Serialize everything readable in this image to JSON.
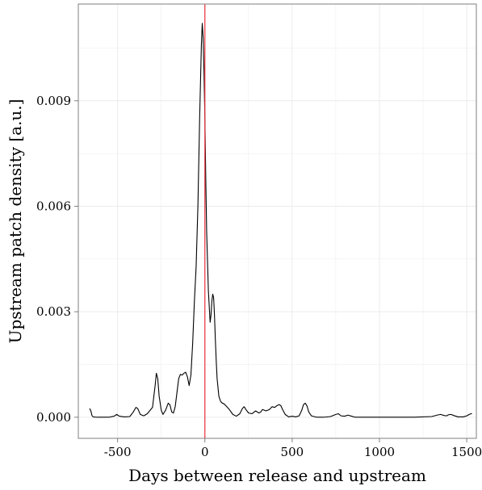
{
  "chart_data": {
    "type": "line",
    "title": "",
    "xlabel": "Days between release and upstream",
    "ylabel": "Upstream patch density [a.u.]",
    "xlim": [
      -725,
      1555
    ],
    "ylim": [
      -0.0006,
      0.01175
    ],
    "x_ticks": [
      -500,
      0,
      500,
      1000,
      1500
    ],
    "x_tick_labels": [
      "-500",
      "0",
      "500",
      "1000",
      "1500"
    ],
    "y_ticks": [
      0.0,
      0.003,
      0.006,
      0.009
    ],
    "y_tick_labels": [
      "0.000",
      "0.003",
      "0.006",
      "0.009"
    ],
    "grid": true,
    "vline": {
      "x": 0,
      "color": "#e8323c"
    },
    "colors": {
      "series": "#000000",
      "grid": "#ebebeb",
      "frame": "#7f7f7f"
    },
    "series": [
      {
        "x": [
          -660,
          -653,
          -647,
          -640,
          -620,
          -600,
          -550,
          -520,
          -505,
          -490,
          -460,
          -430,
          -410,
          -395,
          -385,
          -370,
          -350,
          -330,
          -300,
          -285,
          -278,
          -270,
          -262,
          -250,
          -240,
          -225,
          -210,
          -200,
          -190,
          -180,
          -170,
          -160,
          -150,
          -140,
          -130,
          -120,
          -110,
          -100,
          -90,
          -80,
          -70,
          -60,
          -50,
          -40,
          -30,
          -20,
          -15,
          -10,
          -5,
          0,
          5,
          10,
          20,
          30,
          35,
          40,
          45,
          50,
          55,
          60,
          65,
          70,
          80,
          90,
          100,
          110,
          120,
          140,
          160,
          180,
          200,
          215,
          225,
          235,
          250,
          270,
          290,
          310,
          320,
          330,
          350,
          370,
          385,
          400,
          410,
          425,
          435,
          445,
          460,
          480,
          500,
          520,
          540,
          555,
          565,
          575,
          585,
          595,
          610,
          640,
          680,
          720,
          750,
          765,
          780,
          800,
          820,
          840,
          860,
          900,
          1000,
          1100,
          1200,
          1300,
          1330,
          1350,
          1370,
          1385,
          1395,
          1410,
          1425,
          1450,
          1480,
          1500,
          1515,
          1525,
          1530
        ],
        "y": [
          0.00025,
          0.00018,
          5e-05,
          1e-05,
          0.0,
          0.0,
          0.0,
          3e-05,
          8e-05,
          3e-05,
          1e-05,
          2e-05,
          0.00015,
          0.00028,
          0.00025,
          8e-05,
          4e-05,
          0.0001,
          0.00028,
          0.0009,
          0.00125,
          0.0011,
          0.0006,
          0.0002,
          8e-05,
          0.0002,
          0.0004,
          0.00035,
          0.00015,
          0.00012,
          0.0003,
          0.0007,
          0.0011,
          0.00122,
          0.0012,
          0.00125,
          0.00128,
          0.00115,
          0.0009,
          0.0012,
          0.0021,
          0.0033,
          0.0043,
          0.006,
          0.0085,
          0.0106,
          0.0112,
          0.0108,
          0.0098,
          0.0085,
          0.0068,
          0.0053,
          0.0036,
          0.0027,
          0.0029,
          0.0033,
          0.0035,
          0.0034,
          0.0029,
          0.0022,
          0.0016,
          0.0011,
          0.0006,
          0.00045,
          0.0004,
          0.00038,
          0.00033,
          0.00022,
          8e-05,
          3e-05,
          0.0001,
          0.00025,
          0.0003,
          0.00022,
          0.00012,
          0.0001,
          0.00018,
          0.00012,
          0.00015,
          0.00022,
          0.00018,
          0.00022,
          0.0003,
          0.00028,
          0.00032,
          0.00036,
          0.00033,
          0.00022,
          8e-05,
          1e-05,
          3e-05,
          1e-05,
          4e-05,
          0.0002,
          0.00036,
          0.0004,
          0.00032,
          0.00015,
          4e-05,
          0.0,
          0.0,
          2e-05,
          8e-05,
          0.0001,
          4e-05,
          3e-05,
          6e-05,
          3e-05,
          0.0,
          0.0,
          0.0,
          0.0,
          0.0,
          2e-05,
          6e-05,
          8e-05,
          5e-05,
          4e-05,
          7e-05,
          8e-05,
          5e-05,
          1e-05,
          1e-05,
          4e-05,
          8e-05,
          0.0001,
          0.0001
        ]
      }
    ]
  }
}
